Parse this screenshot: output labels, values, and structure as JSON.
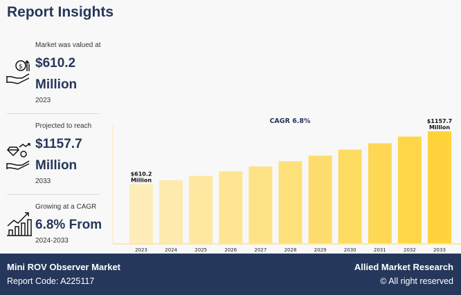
{
  "title": "Report Insights",
  "stats": [
    {
      "label": "Market was valued at",
      "value1": "$610.2",
      "value2": "Million",
      "year": "2023",
      "icon": "money-hand-icon"
    },
    {
      "label": "Projected to reach",
      "value1": "$1157.7",
      "value2": "Million",
      "year": "2033",
      "icon": "diamond-hand-icon"
    },
    {
      "label": "Growing at a CAGR",
      "value1": "6.8% From",
      "year": "2024-2033",
      "icon": "growth-chart-icon"
    }
  ],
  "chart_data": {
    "type": "bar",
    "title": "CAGR 6.8%",
    "categories": [
      "2023",
      "2024",
      "2025",
      "2026",
      "2027",
      "2028",
      "2029",
      "2030",
      "2031",
      "2032",
      "2033"
    ],
    "values": [
      610.2,
      651.7,
      696.0,
      743.3,
      793.9,
      847.9,
      905.5,
      967.1,
      1032.9,
      1103.1,
      1157.7
    ],
    "data_labels": [
      {
        "index": 0,
        "line1": "$610.2",
        "line2": "Million"
      },
      {
        "index": 10,
        "line1": "$1157.7",
        "line2": "Million"
      }
    ],
    "color_start": "#feedb8",
    "color_end": "#fed33c",
    "ylim": [
      0,
      1157.7
    ],
    "grid": false
  },
  "footer": {
    "market": "Mini ROV Observer Market",
    "report_code": "Report Code: A225117",
    "brand": "Allied Market Research",
    "rights": "© All right reserved"
  }
}
